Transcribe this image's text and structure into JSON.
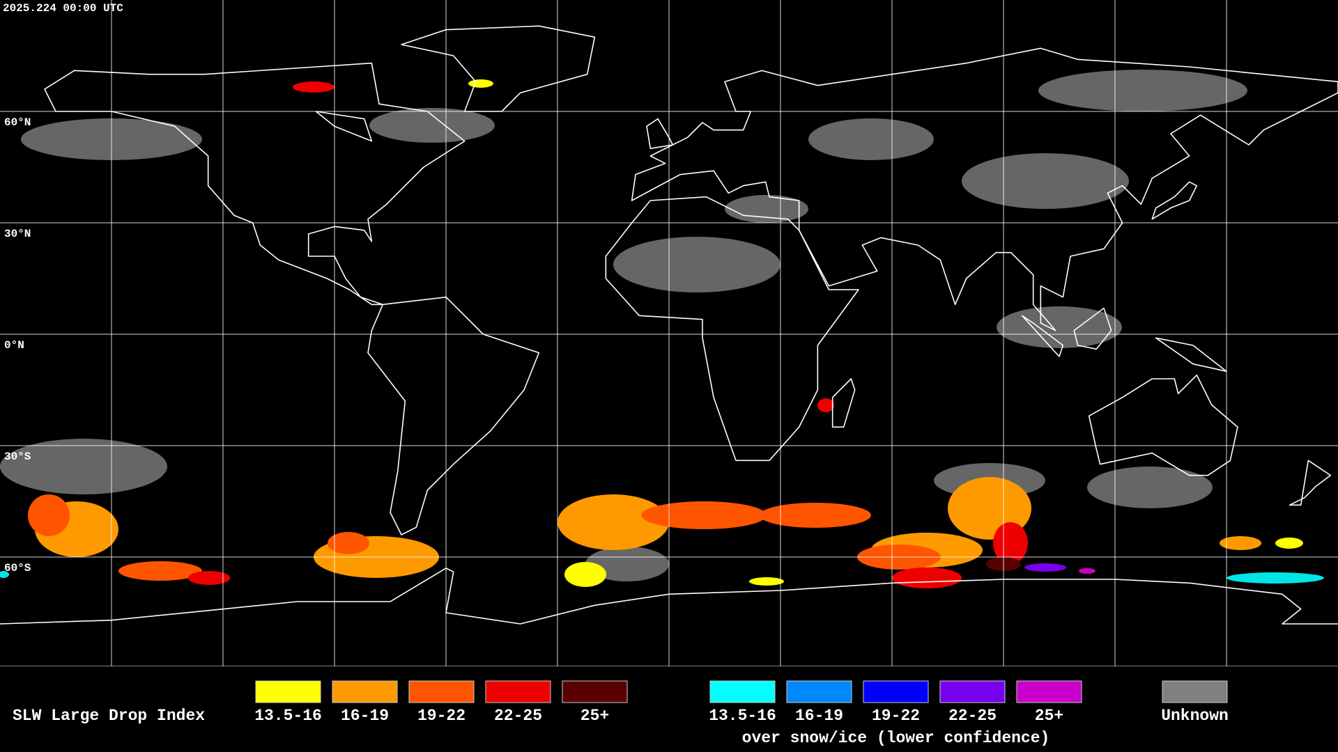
{
  "timestamp": "2025.224 00:00 UTC",
  "latitude_labels": [
    "60°N",
    "30°N",
    "0°N",
    "30°S",
    "60°S"
  ],
  "legend": {
    "title": "SLW Large Drop Index",
    "groups": [
      {
        "items": [
          {
            "label": "13.5-16",
            "color": "#ffff00"
          },
          {
            "label": "16-19",
            "color": "#ff9900"
          },
          {
            "label": "19-22",
            "color": "#ff5500"
          },
          {
            "label": "22-25",
            "color": "#ee0000"
          },
          {
            "label": "25+",
            "color": "#5a0000"
          }
        ]
      },
      {
        "items": [
          {
            "label": "13.5-16",
            "color": "#00ffff"
          },
          {
            "label": "16-19",
            "color": "#0088ff"
          },
          {
            "label": "19-22",
            "color": "#0000ff"
          },
          {
            "label": "22-25",
            "color": "#7700ee"
          },
          {
            "label": "25+",
            "color": "#cc00cc"
          }
        ],
        "note": "over snow/ice (lower confidence)"
      },
      {
        "items": [
          {
            "label": "Unknown",
            "color": "#808080"
          }
        ]
      }
    ]
  }
}
